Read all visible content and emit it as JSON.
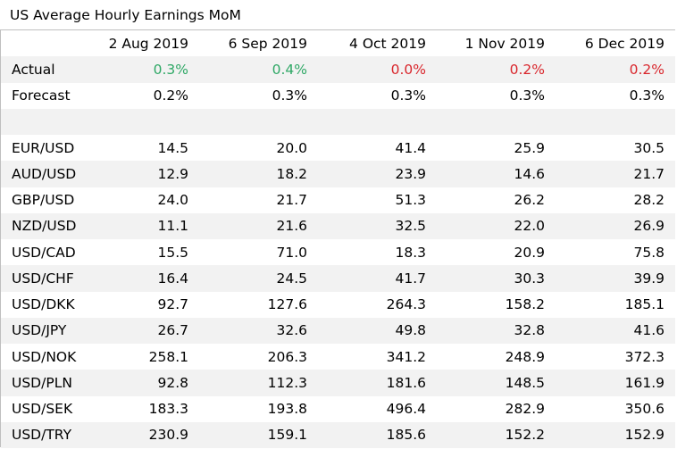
{
  "title": "US Average Hourly Earnings MoM",
  "colors": {
    "positive": "#2fa866",
    "negative": "#d9262c",
    "row_shade": "#f2f2f2"
  },
  "columns": [
    "2 Aug 2019",
    "6 Sep 2019",
    "4 Oct 2019",
    "1 Nov 2019",
    "6 Dec 2019"
  ],
  "actual": {
    "label": "Actual",
    "values": [
      "0.3%",
      "0.4%",
      "0.0%",
      "0.2%",
      "0.2%"
    ],
    "tone": [
      "up",
      "up",
      "down",
      "down",
      "down"
    ]
  },
  "forecast": {
    "label": "Forecast",
    "values": [
      "0.2%",
      "0.3%",
      "0.3%",
      "0.3%",
      "0.3%"
    ]
  },
  "pairs": [
    {
      "pair": "EUR/USD",
      "values": [
        "14.5",
        "20.0",
        "41.4",
        "25.9",
        "30.5"
      ]
    },
    {
      "pair": "AUD/USD",
      "values": [
        "12.9",
        "18.2",
        "23.9",
        "14.6",
        "21.7"
      ]
    },
    {
      "pair": "GBP/USD",
      "values": [
        "24.0",
        "21.7",
        "51.3",
        "26.2",
        "28.2"
      ]
    },
    {
      "pair": "NZD/USD",
      "values": [
        "11.1",
        "21.6",
        "32.5",
        "22.0",
        "26.9"
      ]
    },
    {
      "pair": "USD/CAD",
      "values": [
        "15.5",
        "71.0",
        "18.3",
        "20.9",
        "75.8"
      ]
    },
    {
      "pair": "USD/CHF",
      "values": [
        "16.4",
        "24.5",
        "41.7",
        "30.3",
        "39.9"
      ]
    },
    {
      "pair": "USD/DKK",
      "values": [
        "92.7",
        "127.6",
        "264.3",
        "158.2",
        "185.1"
      ]
    },
    {
      "pair": "USD/JPY",
      "values": [
        "26.7",
        "32.6",
        "49.8",
        "32.8",
        "41.6"
      ]
    },
    {
      "pair": "USD/NOK",
      "values": [
        "258.1",
        "206.3",
        "341.2",
        "248.9",
        "372.3"
      ]
    },
    {
      "pair": "USD/PLN",
      "values": [
        "92.8",
        "112.3",
        "181.6",
        "148.5",
        "161.9"
      ]
    },
    {
      "pair": "USD/SEK",
      "values": [
        "183.3",
        "193.8",
        "496.4",
        "282.9",
        "350.6"
      ]
    },
    {
      "pair": "USD/TRY",
      "values": [
        "230.9",
        "159.1",
        "185.6",
        "152.2",
        "152.9"
      ]
    }
  ]
}
